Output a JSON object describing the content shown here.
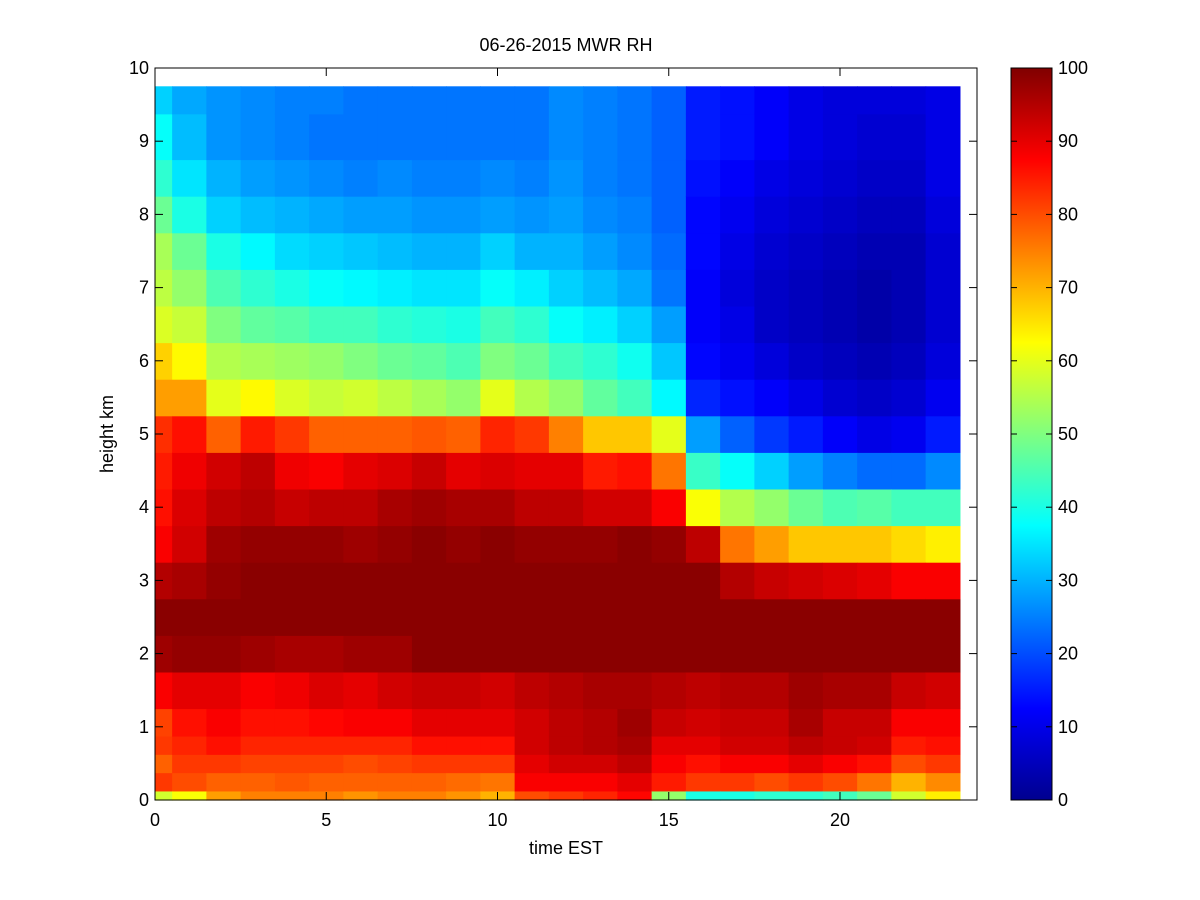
{
  "chart_data": {
    "type": "heatmap",
    "title": "06-26-2015 MWR RH",
    "xlabel": "time EST",
    "ylabel": "height km",
    "xlim": [
      0,
      24
    ],
    "ylim": [
      0,
      10
    ],
    "xticks": [
      0,
      5,
      10,
      15,
      20
    ],
    "yticks": [
      0,
      1,
      2,
      3,
      4,
      5,
      6,
      7,
      8,
      9,
      10
    ],
    "colorbar": {
      "range": [
        0,
        100
      ],
      "ticks": [
        0,
        10,
        20,
        30,
        40,
        50,
        60,
        70,
        80,
        90,
        100
      ],
      "colormap": "jet"
    },
    "time_columns": [
      0,
      1,
      2,
      3,
      4,
      5,
      6,
      7,
      8,
      9,
      10,
      11,
      12,
      13,
      14,
      15,
      16,
      17,
      18,
      19,
      20,
      21,
      22,
      23
    ],
    "height_levels_km": [
      0,
      0.25,
      0.5,
      0.75,
      1,
      1.5,
      2,
      2.5,
      3,
      3.5,
      4,
      4.5,
      5,
      5.5,
      6,
      6.5,
      7,
      7.5,
      8,
      8.5,
      9,
      9.75
    ],
    "rh_percent": [
      [
        58,
        82,
        78,
        82,
        81,
        88,
        97,
        99,
        95,
        88,
        86,
        85,
        83,
        72,
        67,
        59,
        56,
        54,
        48,
        42,
        38,
        33
      ],
      [
        62,
        80,
        82,
        84,
        86,
        90,
        98,
        99,
        96,
        92,
        91,
        89,
        86,
        72,
        63,
        57,
        52,
        48,
        40,
        35,
        31,
        29
      ],
      [
        72,
        78,
        82,
        86,
        88,
        90,
        98,
        99,
        98,
        97,
        94,
        92,
        78,
        60,
        55,
        50,
        45,
        40,
        33,
        30,
        27,
        27
      ],
      [
        75,
        78,
        81,
        84,
        86,
        88,
        97,
        99,
        99,
        98,
        95,
        94,
        85,
        63,
        54,
        47,
        42,
        37,
        31,
        28,
        26,
        26
      ],
      [
        75,
        79,
        81,
        84,
        86,
        89,
        96,
        99,
        99,
        98,
        93,
        89,
        82,
        59,
        53,
        46,
        40,
        34,
        30,
        27,
        25,
        25
      ],
      [
        75,
        78,
        81,
        84,
        87,
        91,
        96,
        99,
        99,
        98,
        94,
        88,
        78,
        57,
        52,
        44,
        38,
        33,
        29,
        26,
        24,
        25
      ],
      [
        73,
        78,
        80,
        84,
        88,
        90,
        97,
        99,
        99,
        97,
        94,
        90,
        78,
        58,
        50,
        44,
        37,
        32,
        28,
        25,
        24,
        24
      ],
      [
        75,
        78,
        81,
        84,
        88,
        92,
        97,
        99,
        99,
        98,
        96,
        91,
        78,
        56,
        48,
        42,
        36,
        31,
        28,
        26,
        24,
        24
      ],
      [
        75,
        78,
        82,
        86,
        90,
        93,
        99,
        99,
        99,
        99,
        97,
        93,
        79,
        54,
        47,
        41,
        35,
        30,
        27,
        25,
        24,
        24
      ],
      [
        73,
        77,
        82,
        86,
        90,
        93,
        99,
        99,
        99,
        98,
        96,
        90,
        78,
        52,
        45,
        40,
        35,
        30,
        27,
        25,
        24,
        24
      ],
      [
        70,
        76,
        82,
        86,
        90,
        92,
        99,
        99,
        99,
        99,
        96,
        91,
        84,
        60,
        50,
        44,
        38,
        33,
        28,
        26,
        24,
        24
      ],
      [
        80,
        88,
        90,
        92,
        92,
        94,
        99,
        99,
        99,
        98,
        94,
        90,
        82,
        55,
        48,
        42,
        36,
        30,
        27,
        25,
        24,
        24
      ],
      [
        82,
        88,
        92,
        94,
        94,
        95,
        99,
        99,
        99,
        98,
        94,
        90,
        75,
        52,
        44,
        38,
        33,
        30,
        28,
        27,
        26,
        26
      ],
      [
        84,
        88,
        92,
        95,
        95,
        96,
        99,
        99,
        99,
        98,
        92,
        85,
        68,
        47,
        42,
        36,
        31,
        28,
        26,
        25,
        25,
        25
      ],
      [
        87,
        90,
        94,
        96,
        97,
        96,
        99,
        99,
        99,
        99,
        92,
        86,
        68,
        44,
        39,
        33,
        29,
        26,
        25,
        24,
        24,
        24
      ],
      [
        52,
        85,
        88,
        90,
        93,
        95,
        99,
        99,
        99,
        98,
        88,
        76,
        60,
        37,
        32,
        28,
        24,
        23,
        22,
        22,
        22,
        22
      ],
      [
        40,
        82,
        86,
        90,
        92,
        94,
        99,
        99,
        99,
        94,
        62,
        43,
        28,
        16,
        13,
        12,
        12,
        13,
        13,
        14,
        15,
        15
      ],
      [
        40,
        82,
        88,
        92,
        93,
        95,
        99,
        99,
        95,
        76,
        55,
        38,
        22,
        14,
        11,
        10,
        9,
        10,
        11,
        12,
        14,
        14
      ],
      [
        42,
        80,
        88,
        92,
        93,
        95,
        99,
        99,
        93,
        72,
        52,
        33,
        18,
        12,
        9,
        7,
        7,
        8,
        9,
        10,
        12,
        12
      ],
      [
        42,
        82,
        90,
        94,
        96,
        97,
        99,
        99,
        92,
        68,
        48,
        28,
        15,
        10,
        7,
        6,
        6,
        7,
        8,
        9,
        10,
        10
      ],
      [
        44,
        80,
        88,
        93,
        93,
        96,
        99,
        99,
        91,
        68,
        45,
        25,
        12,
        8,
        6,
        5,
        5,
        6,
        7,
        8,
        9,
        9
      ],
      [
        48,
        76,
        86,
        92,
        93,
        96,
        99,
        99,
        90,
        68,
        46,
        23,
        10,
        7,
        5,
        4,
        4,
        5,
        6,
        7,
        8,
        9
      ],
      [
        58,
        70,
        80,
        85,
        88,
        93,
        99,
        99,
        88,
        66,
        44,
        23,
        11,
        8,
        6,
        5,
        5,
        5,
        6,
        7,
        8,
        9
      ],
      [
        64,
        74,
        82,
        86,
        88,
        92,
        99,
        99,
        88,
        64,
        44,
        26,
        15,
        11,
        9,
        8,
        8,
        8,
        9,
        10,
        10,
        10
      ]
    ]
  }
}
